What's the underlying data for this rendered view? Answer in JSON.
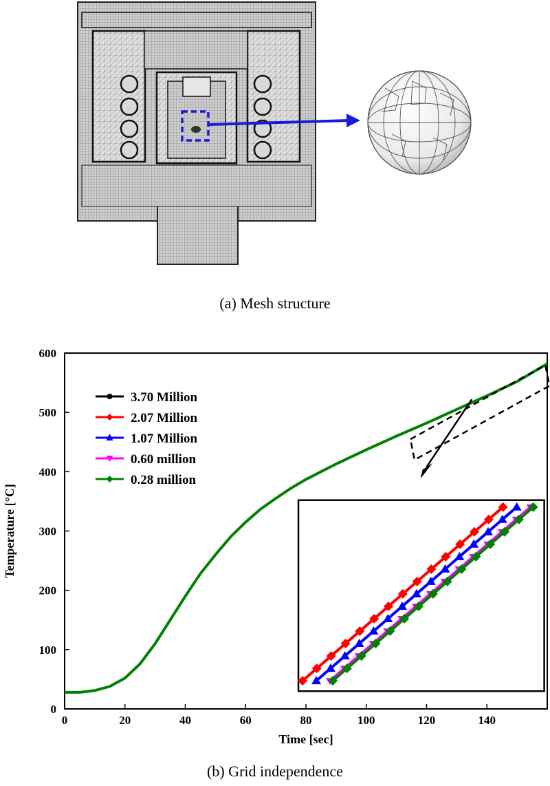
{
  "captions": {
    "a": "(a) Mesh structure",
    "b": "(b) Grid independence"
  },
  "chart_data": {
    "type": "line",
    "title": "",
    "xlabel": "Time [sec]",
    "ylabel": "Temperature [°C]",
    "xlim": [
      0,
      160
    ],
    "ylim": [
      0,
      600
    ],
    "xticks": [
      0,
      20,
      40,
      60,
      80,
      100,
      120,
      140
    ],
    "yticks": [
      0,
      100,
      200,
      300,
      400,
      500,
      600
    ],
    "x": [
      0,
      5,
      10,
      15,
      20,
      25,
      30,
      35,
      40,
      45,
      50,
      55,
      60,
      65,
      70,
      75,
      80,
      90,
      100,
      110,
      120,
      130,
      140,
      150,
      160
    ],
    "series": [
      {
        "name": "3.70 Million",
        "color": "#000000",
        "marker": "circle",
        "values": [
          28,
          28,
          31,
          38,
          52,
          76,
          110,
          150,
          190,
          228,
          260,
          290,
          315,
          337,
          355,
          372,
          387,
          413,
          437,
          460,
          482,
          505,
          528,
          552,
          582
        ]
      },
      {
        "name": "2.07 Million",
        "color": "#ff0000",
        "marker": "diamond",
        "values": [
          28,
          28,
          31,
          38,
          52,
          76,
          110,
          150,
          190,
          228,
          260,
          290,
          315,
          337,
          355,
          372,
          387,
          413,
          437,
          460,
          482,
          505,
          528,
          552,
          582
        ]
      },
      {
        "name": "1.07 Million",
        "color": "#0000ff",
        "marker": "triangle-up",
        "values": [
          28,
          28,
          31,
          38,
          52,
          76,
          110,
          150,
          190,
          228,
          260,
          290,
          315,
          337,
          355,
          372,
          387,
          413,
          437,
          460,
          482,
          505,
          528,
          552,
          582
        ]
      },
      {
        "name": "0.60 million",
        "color": "#ff00ff",
        "marker": "triangle-down",
        "values": [
          28,
          28,
          31,
          38,
          52,
          76,
          110,
          150,
          190,
          228,
          260,
          290,
          315,
          337,
          355,
          372,
          387,
          413,
          437,
          460,
          482,
          505,
          528,
          552,
          582
        ]
      },
      {
        "name": "0.28 million",
        "color": "#008000",
        "marker": "diamond",
        "values": [
          28,
          28,
          31,
          38,
          52,
          76,
          110,
          150,
          190,
          228,
          260,
          290,
          315,
          337,
          355,
          372,
          387,
          413,
          437,
          460,
          482,
          505,
          528,
          552,
          582
        ]
      }
    ],
    "legend_position": "top-left",
    "inset": {
      "description": "zoomed view",
      "order": [
        "2.07 Million",
        "1.07 Million",
        "0.60 million",
        "0.28 million"
      ]
    }
  }
}
